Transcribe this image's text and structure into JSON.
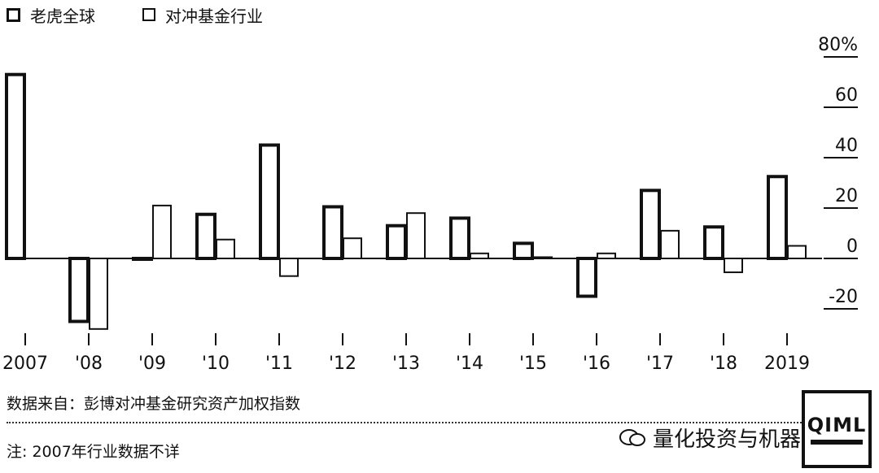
{
  "legend": {
    "items": [
      {
        "label": "老虎全球",
        "style": "thick"
      },
      {
        "label": "对冲基金行业",
        "style": "thin"
      }
    ]
  },
  "chart_data": {
    "type": "bar",
    "categories": [
      "2007",
      "'08",
      "'09",
      "'10",
      "'11",
      "'12",
      "'13",
      "'14",
      "'15",
      "'16",
      "'17",
      "'18",
      "2019"
    ],
    "series": [
      {
        "name": "老虎全球",
        "values": [
          73,
          -25,
          0,
          17.5,
          45,
          20.5,
          13,
          16,
          6,
          -15,
          27,
          12.5,
          32.5
        ]
      },
      {
        "name": "对冲基金行业",
        "values": [
          null,
          -28,
          21,
          7.5,
          -7,
          8,
          18,
          2,
          0.5,
          2,
          11,
          -5.5,
          5
        ]
      }
    ],
    "ylim": [
      -30,
      80
    ],
    "yticks": [
      -20,
      0,
      20,
      40,
      60,
      80
    ],
    "ytick_labels": [
      "-20",
      "0",
      "20",
      "40",
      "60",
      "80%"
    ],
    "grid": false,
    "legend_position": "top-left",
    "colors": {
      "bar_stroke": "#111111",
      "bar_fill": "#ffffff"
    }
  },
  "footer": {
    "source": "数据来自：彭博对冲基金研究资产加权指数",
    "note": "注: 2007年行业数据不详",
    "watermark": "量化投资与机器学习",
    "logo": "QIML"
  }
}
